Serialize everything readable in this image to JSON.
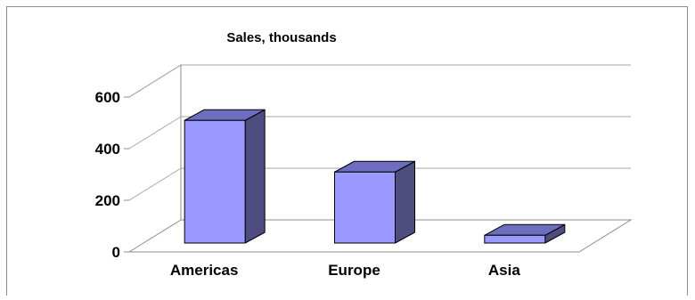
{
  "chart_data": {
    "type": "bar",
    "title": "Sales, thousands",
    "categories": [
      "Americas",
      "Europe",
      "Asia"
    ],
    "values": [
      475,
      275,
      30
    ],
    "ylim": [
      0,
      600
    ],
    "yticks": [
      0,
      200,
      400,
      600
    ],
    "xlabel": "",
    "ylabel": "",
    "grid": true,
    "legend": "none",
    "style": "3d-column"
  },
  "colors": {
    "bar_front": "#9999ff",
    "bar_side": "#4d4d80",
    "bar_top": "#6e6ec0",
    "grid": "#a6a6a6",
    "frame": "#8c8c8c"
  }
}
